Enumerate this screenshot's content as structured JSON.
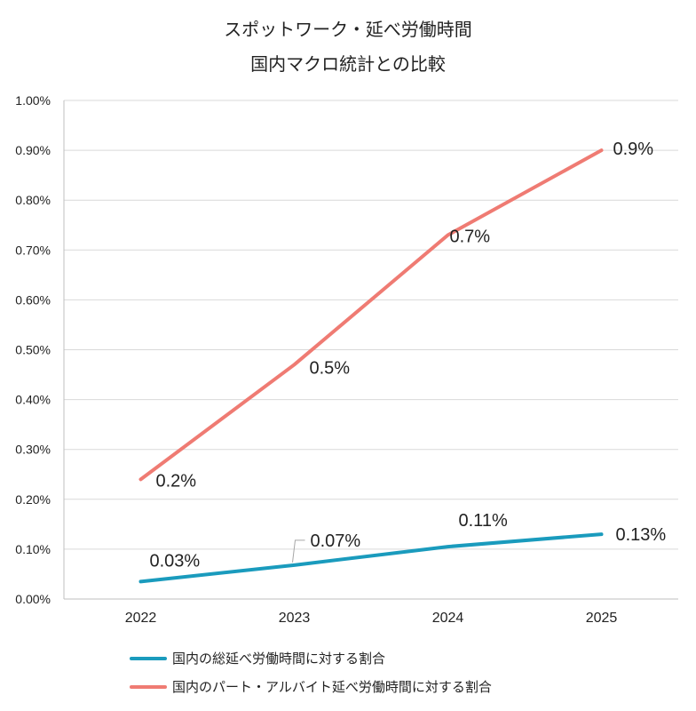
{
  "chart_data": {
    "type": "line",
    "title_lines": [
      "スポットワーク・延べ労働時間",
      "国内マクロ統計との比較"
    ],
    "categories": [
      "2022",
      "2023",
      "2024",
      "2025"
    ],
    "ylim": [
      0,
      0.01
    ],
    "y_ticks": [
      "0.00%",
      "0.10%",
      "0.20%",
      "0.30%",
      "0.40%",
      "0.50%",
      "0.60%",
      "0.70%",
      "0.80%",
      "0.90%",
      "1.00%"
    ],
    "grid": true,
    "legend_position": "bottom",
    "series": [
      {
        "name": "国内の総延べ労働時間に対する割合",
        "color": "#1a9bbd",
        "values": [
          0.00035,
          0.00068,
          0.00105,
          0.0013
        ],
        "labels": [
          "0.03%",
          "0.07%",
          "0.11%",
          "0.13%"
        ]
      },
      {
        "name": "国内のパート・アルバイト延べ労働時間に対する割合",
        "color": "#ef7b73",
        "values": [
          0.0024,
          0.0047,
          0.0073,
          0.009
        ],
        "labels": [
          "0.2%",
          "0.5%",
          "0.7%",
          "0.9%"
        ]
      }
    ]
  }
}
